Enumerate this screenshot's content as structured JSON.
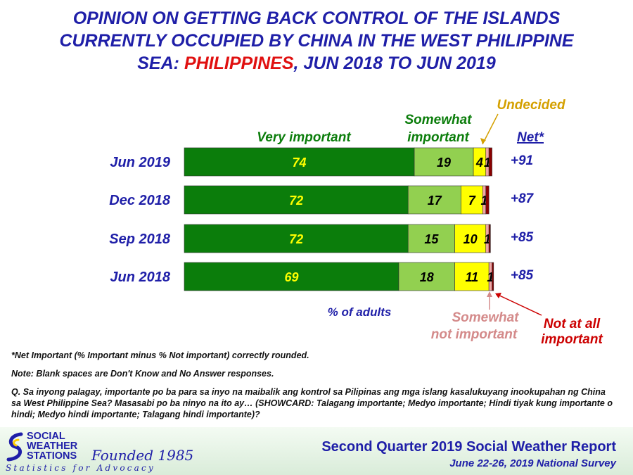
{
  "title": {
    "line1": "OPINION ON GETTING BACK CONTROL OF THE ISLANDS",
    "line2": "CURRENTLY OCCUPIED BY CHINA IN THE WEST PHILIPPINE",
    "line3_pre": "SEA: ",
    "line3_highlight": "PHILIPPINES",
    "line3_post": ", JUN 2018 TO JUN 2019"
  },
  "chart_data": {
    "type": "bar",
    "orientation": "horizontal",
    "stacked": true,
    "categories": [
      "Jun 2019",
      "Dec 2018",
      "Sep 2018",
      "Jun 2018"
    ],
    "series": [
      {
        "name": "Very important",
        "values": [
          74,
          72,
          72,
          69
        ],
        "color": "#0b7d0b",
        "label_color": "#ffff00"
      },
      {
        "name": "Somewhat important",
        "values": [
          19,
          17,
          15,
          18
        ],
        "color": "#92d050",
        "label_color": "#000000"
      },
      {
        "name": "Undecided",
        "values": [
          4,
          7,
          10,
          11
        ],
        "color": "#ffff00",
        "label_color": "#000000"
      },
      {
        "name": "Somewhat not important",
        "values": [
          1,
          1,
          1,
          1
        ],
        "color": "#f4a6a6",
        "label_color": "#000000"
      },
      {
        "name": "Not at all important",
        "values": [
          1,
          1,
          0.5,
          0.5
        ],
        "color": "#8b0000",
        "label_color": "#000000"
      }
    ],
    "bar_labels": [
      [
        "74",
        "19",
        "4",
        "1",
        ""
      ],
      [
        "72",
        "17",
        "7",
        "1",
        ""
      ],
      [
        "72",
        "15",
        "10",
        "1",
        ""
      ],
      [
        "69",
        "18",
        "11",
        "1",
        ""
      ]
    ],
    "net": [
      "+91",
      "+87",
      "+85",
      "+85"
    ],
    "net_header": "Net*",
    "xlabel": "% of adults",
    "xlim": [
      0,
      100
    ],
    "legend_labels": {
      "very": "Very important",
      "somewhat_1": "Somewhat",
      "somewhat_2": "important",
      "undecided": "Undecided",
      "not_1": "Somewhat",
      "not_2": "not important",
      "notall_1": "Not at all",
      "notall_2": "important"
    },
    "grid": false
  },
  "notes": {
    "net": "*Net Important (% Important minus % Not important) correctly rounded.",
    "blank": "Note: Blank spaces are Don't Know and No Answer responses.",
    "question": "Q. Sa inyong palagay, importante po ba para sa inyo na maibalik ang kontrol sa Pilipinas ang mga islang kasalukuyang inookupahan ng China sa West Philippine Sea? Masasabi po ba ninyo na ito ay… (SHOWCARD: Talagang importante; Medyo importante; Hindi tiyak kung importante o hindi; Medyo hindi importante; Talagang hindi importante)?"
  },
  "footer": {
    "org_line1": "SOCIAL",
    "org_line2": "WEATHER",
    "org_line3": "STATIONS",
    "founded": "Founded 1985",
    "tagline": "Statistics for Advocacy",
    "report": "Second Quarter 2019 Social Weather Report",
    "survey": "June 22-26, 2019 National Survey"
  },
  "colors": {
    "title": "#1f1fa8",
    "title_highlight": "#e01010",
    "very_label": "#0b7d0b",
    "undecided_label": "#d4a000",
    "not_label": "#d48a8a",
    "notall_label": "#cc0000"
  }
}
